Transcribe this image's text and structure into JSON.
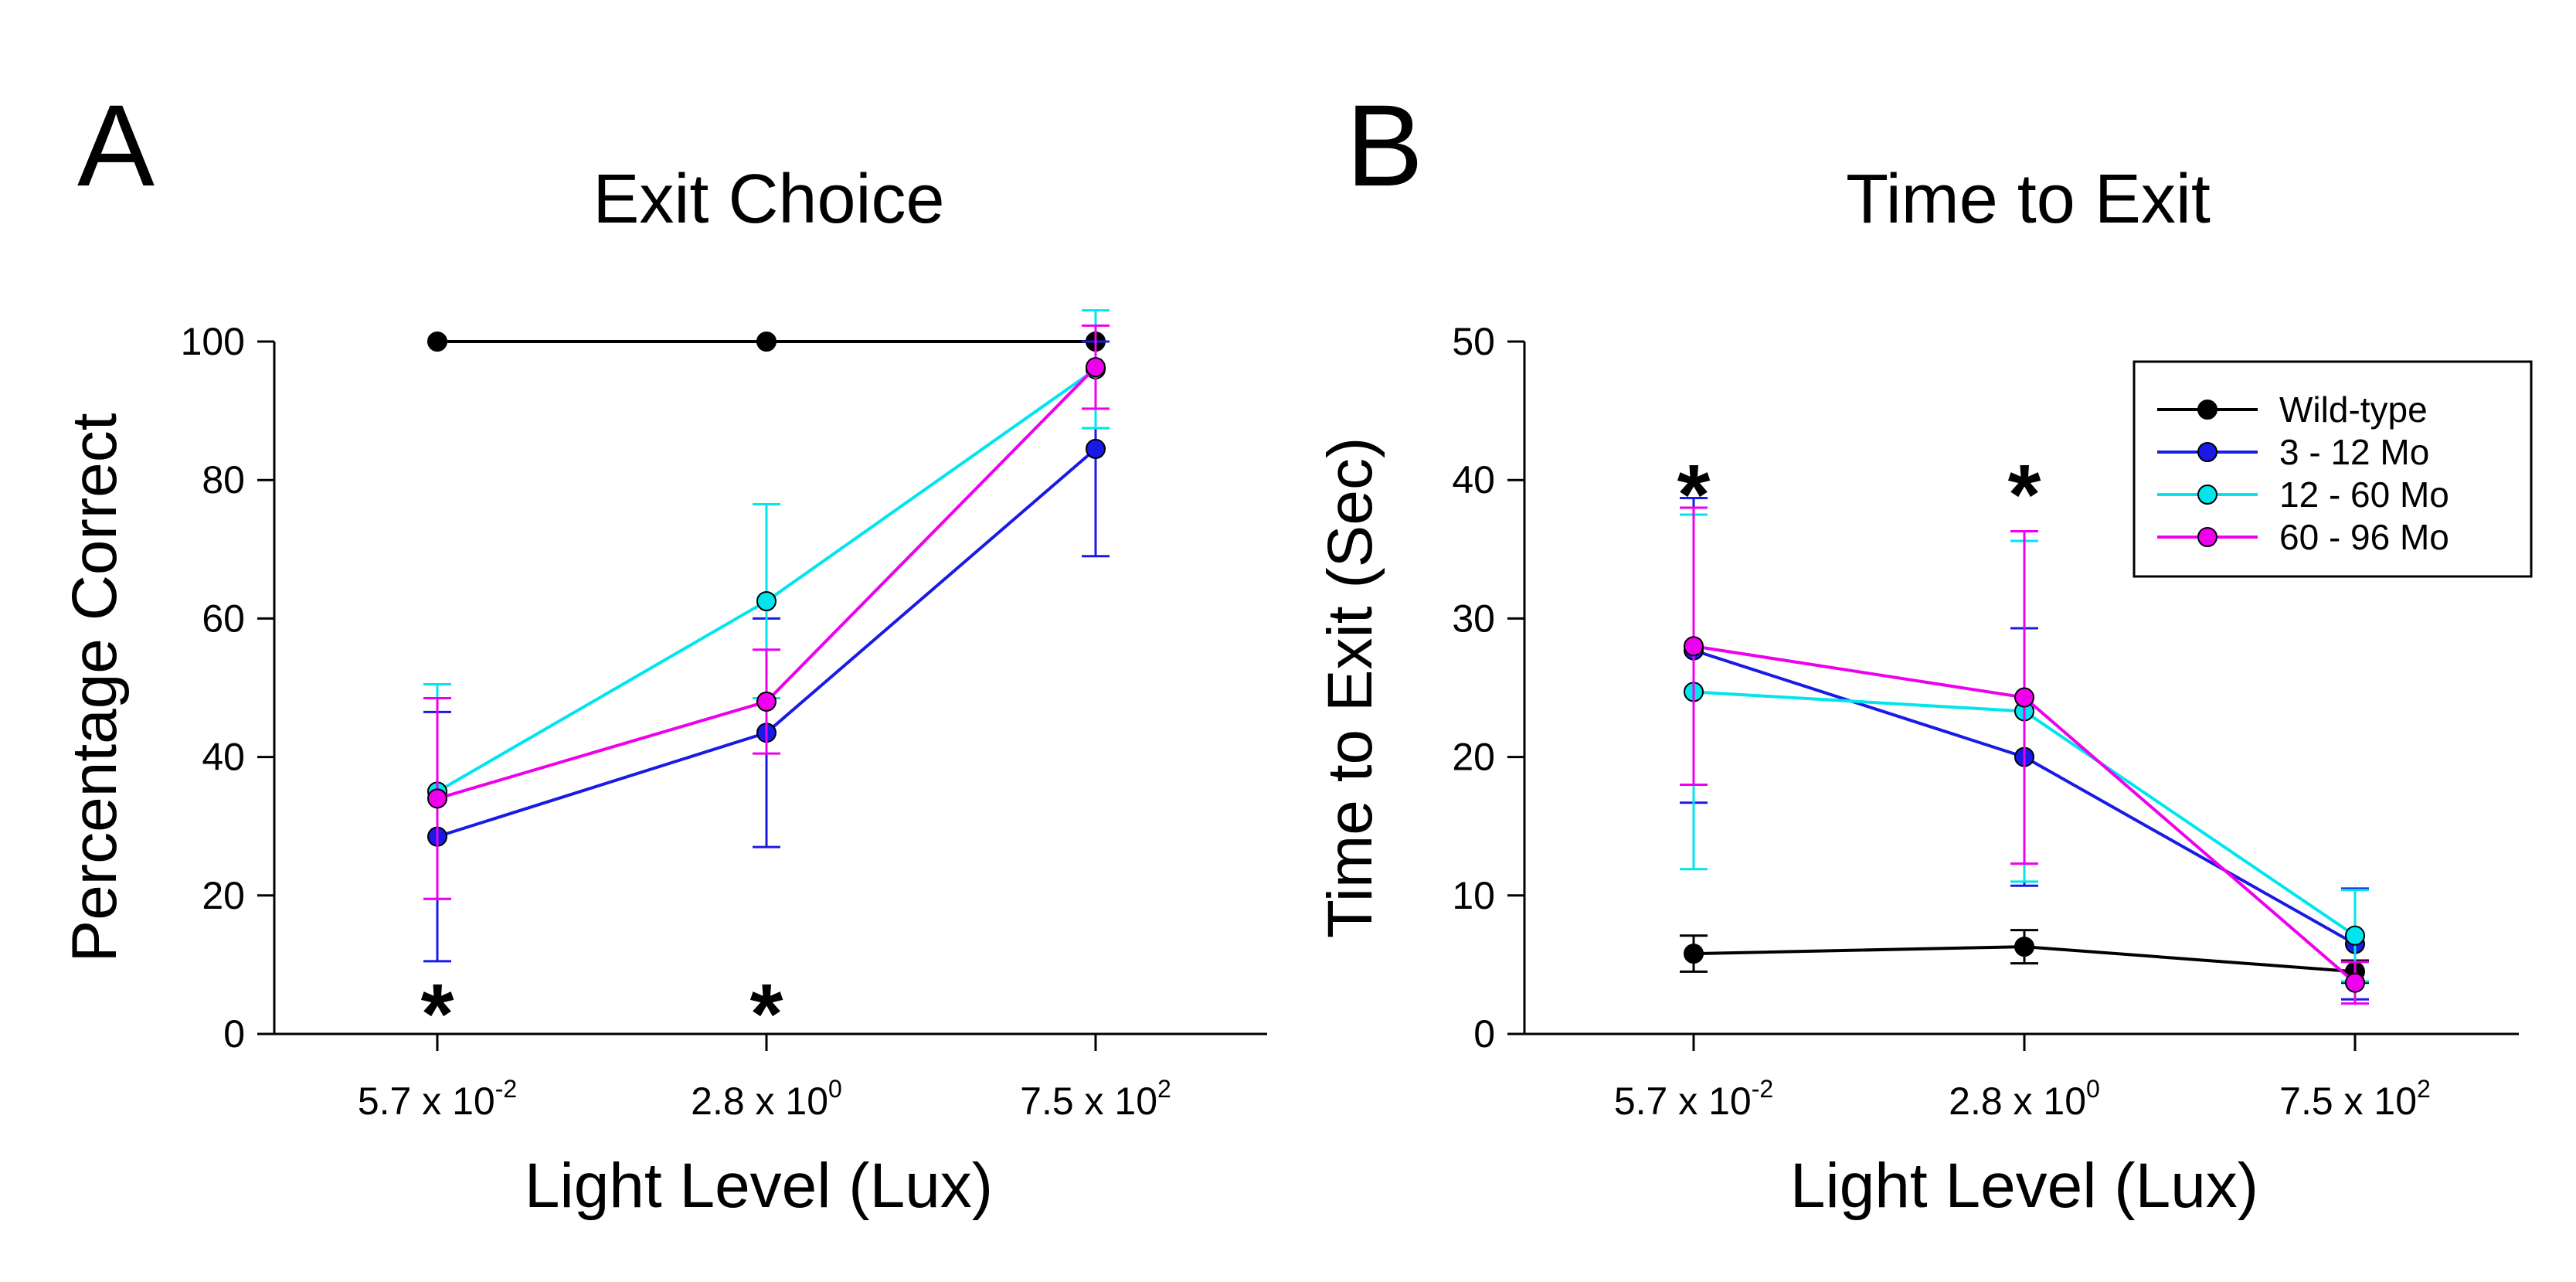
{
  "chart_data": [
    {
      "panel": "A",
      "type": "line",
      "title": "Exit Choice",
      "xlabel": "Light Level (Lux)",
      "ylabel": "Percentage Correct",
      "categories": [
        {
          "base": "5.7 x 10",
          "exp": "-2"
        },
        {
          "base": "2.8 x 10",
          "exp": "0"
        },
        {
          "base": "7.5 x 10",
          "exp": "2"
        }
      ],
      "ylim": [
        0,
        100
      ],
      "yticks": [
        "0",
        "20",
        "40",
        "60",
        "80",
        "100"
      ],
      "significance_marks": [
        {
          "category_index": 0,
          "y": 4,
          "label": "*"
        },
        {
          "category_index": 1,
          "y": 4,
          "label": "*"
        }
      ],
      "series": [
        {
          "name": "Wild-type",
          "color": "#000000",
          "values": [
            100,
            100,
            100
          ],
          "errors": [
            0,
            0,
            0
          ]
        },
        {
          "name": "3 - 12 Mo",
          "color": "#1a1ae6",
          "values": [
            28.5,
            43.5,
            84.5
          ],
          "errors": [
            18,
            16.5,
            15.5
          ]
        },
        {
          "name": "12 - 60 Mo",
          "color": "#00e5ee",
          "values": [
            35,
            62.5,
            96
          ],
          "errors": [
            15.5,
            14,
            8.5
          ]
        },
        {
          "name": "60 - 96 Mo",
          "color": "#ee00ee",
          "values": [
            34,
            48,
            96.3
          ],
          "errors": [
            14.5,
            7.5,
            6
          ]
        }
      ]
    },
    {
      "panel": "B",
      "type": "line",
      "title": "Time to Exit",
      "xlabel": "Light Level (Lux)",
      "ylabel": "Time to Exit (Sec)",
      "categories": [
        {
          "base": "5.7 x 10",
          "exp": "-2"
        },
        {
          "base": "2.8 x 10",
          "exp": "0"
        },
        {
          "base": "7.5 x 10",
          "exp": "2"
        }
      ],
      "ylim": [
        0,
        50
      ],
      "yticks": [
        "0",
        "10",
        "20",
        "30",
        "40",
        "50"
      ],
      "legend_position": "top-right",
      "significance_marks": [
        {
          "category_index": 0,
          "y": 39.5,
          "label": "*"
        },
        {
          "category_index": 1,
          "y": 39.5,
          "label": "*"
        }
      ],
      "series": [
        {
          "name": "Wild-type",
          "color": "#000000",
          "values": [
            5.8,
            6.3,
            4.5
          ],
          "errors": [
            1.3,
            1.2,
            0.8
          ]
        },
        {
          "name": "3 - 12 Mo",
          "color": "#1a1ae6",
          "values": [
            27.7,
            20,
            6.5
          ],
          "errors": [
            11,
            9.3,
            4
          ]
        },
        {
          "name": "12 - 60 Mo",
          "color": "#00e5ee",
          "values": [
            24.7,
            23.3,
            7.1
          ],
          "errors": [
            12.8,
            12.3,
            3.3
          ]
        },
        {
          "name": "60 - 96 Mo",
          "color": "#ee00ee",
          "values": [
            28,
            24.3,
            3.7
          ],
          "errors": [
            10,
            12,
            1.5
          ]
        }
      ]
    }
  ]
}
